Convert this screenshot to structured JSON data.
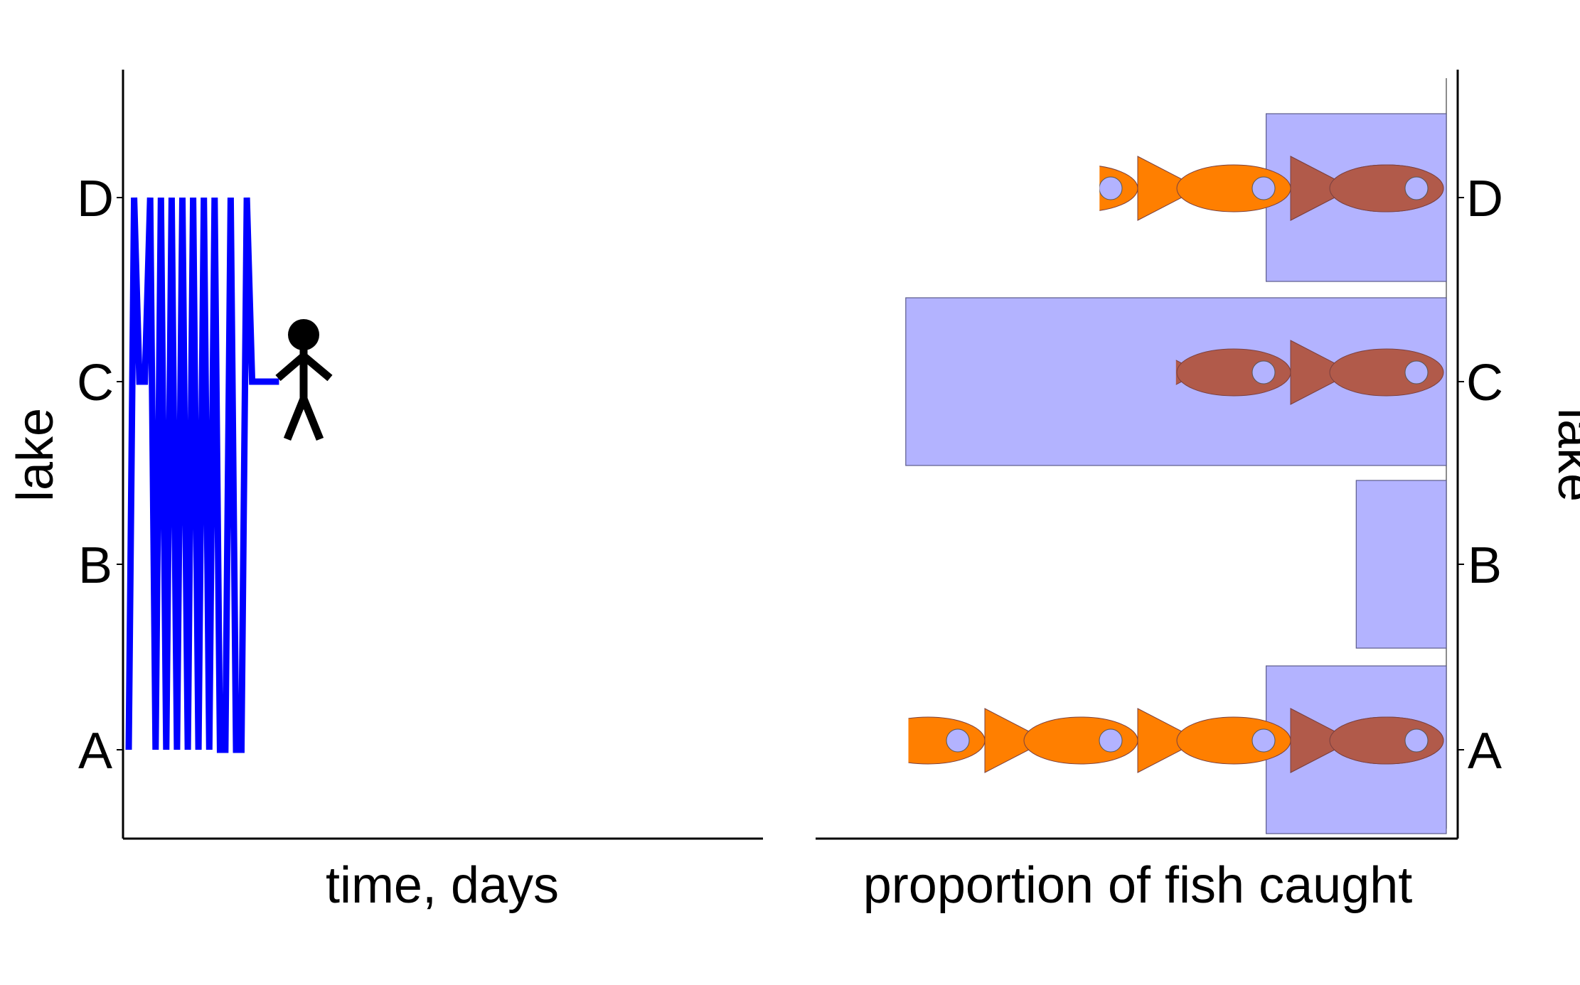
{
  "chart_data": [
    {
      "type": "line",
      "xlabel": "time, days",
      "ylabel": "lake",
      "categories": [
        "A",
        "B",
        "C",
        "D"
      ],
      "series": [
        {
          "color": "#0000ff",
          "x": [
            0,
            1,
            2,
            3,
            4,
            5,
            6,
            7,
            8,
            9,
            10,
            11,
            12,
            13,
            14,
            15,
            16,
            17,
            18,
            19,
            20,
            21,
            22,
            23,
            24,
            25,
            26,
            27,
            28
          ],
          "y": [
            "A",
            "D",
            "C",
            "C",
            "D",
            "A",
            "D",
            "A",
            "D",
            "A",
            "D",
            "A",
            "D",
            "A",
            "D",
            "A",
            "D",
            "A",
            "A",
            "D",
            "A",
            "A",
            "D",
            "C",
            "C",
            "C",
            "C",
            "C",
            "C"
          ]
        }
      ],
      "annotations": [
        {
          "icon": "stick-figure-icon",
          "at_lake": "C",
          "color": "#000000"
        }
      ]
    },
    {
      "type": "bar",
      "orientation": "horizontal",
      "xlabel": "proportion of fish caught",
      "ylabel": "lake",
      "categories": [
        "A",
        "B",
        "C",
        "D"
      ],
      "values": [
        0.28,
        0.14,
        0.84,
        0.28
      ],
      "xlim": [
        0,
        1
      ],
      "bar_color": "#b3b3ff",
      "fish_counts": {
        "A": {
          "orange": 2.5,
          "brown": 1
        },
        "B": {
          "orange": 0,
          "brown": 0
        },
        "C": {
          "orange": 0,
          "brown": 1.75
        },
        "D": {
          "orange": 1.25,
          "brown": 1
        }
      },
      "fish_colors": {
        "orange": "#ff7f00",
        "brown": "#b15a4a",
        "eye": "#b3b3ff"
      }
    }
  ]
}
